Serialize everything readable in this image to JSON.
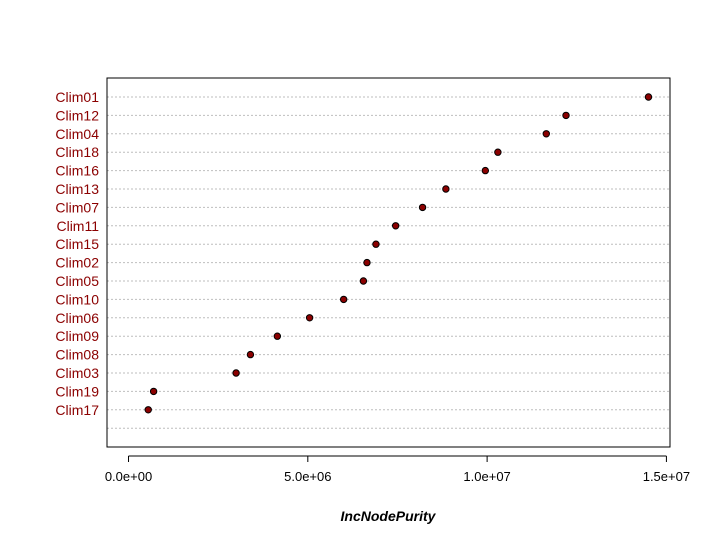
{
  "chart_data": {
    "type": "scatter",
    "title": "",
    "xlabel": "IncNodePurity",
    "ylabel": "",
    "xlim": [
      -600000,
      15100000
    ],
    "x_ticks": [
      0,
      5000000,
      10000000,
      15000000
    ],
    "x_tick_labels": [
      "0.0e+00",
      "5.0e+06",
      "1.0e+07",
      "1.5e+07"
    ],
    "grid": "horizontal dotted",
    "categories": [
      "Clim01",
      "Clim12",
      "Clim04",
      "Clim18",
      "Clim16",
      "Clim13",
      "Clim07",
      "Clim11",
      "Clim15",
      "Clim02",
      "Clim05",
      "Clim10",
      "Clim06",
      "Clim09",
      "Clim08",
      "Clim03",
      "Clim19",
      "Clim17"
    ],
    "values": [
      14500000,
      12200000,
      11650000,
      10300000,
      9950000,
      8850000,
      8200000,
      7450000,
      6900000,
      6650000,
      6550000,
      6000000,
      5050000,
      4150000,
      3400000,
      3000000,
      700000,
      550000
    ],
    "colors": {
      "label": "#8b0000",
      "point_fill": "#8b0000",
      "point_stroke": "#000000",
      "grid": "#bebebe",
      "axis": "#000000"
    }
  }
}
